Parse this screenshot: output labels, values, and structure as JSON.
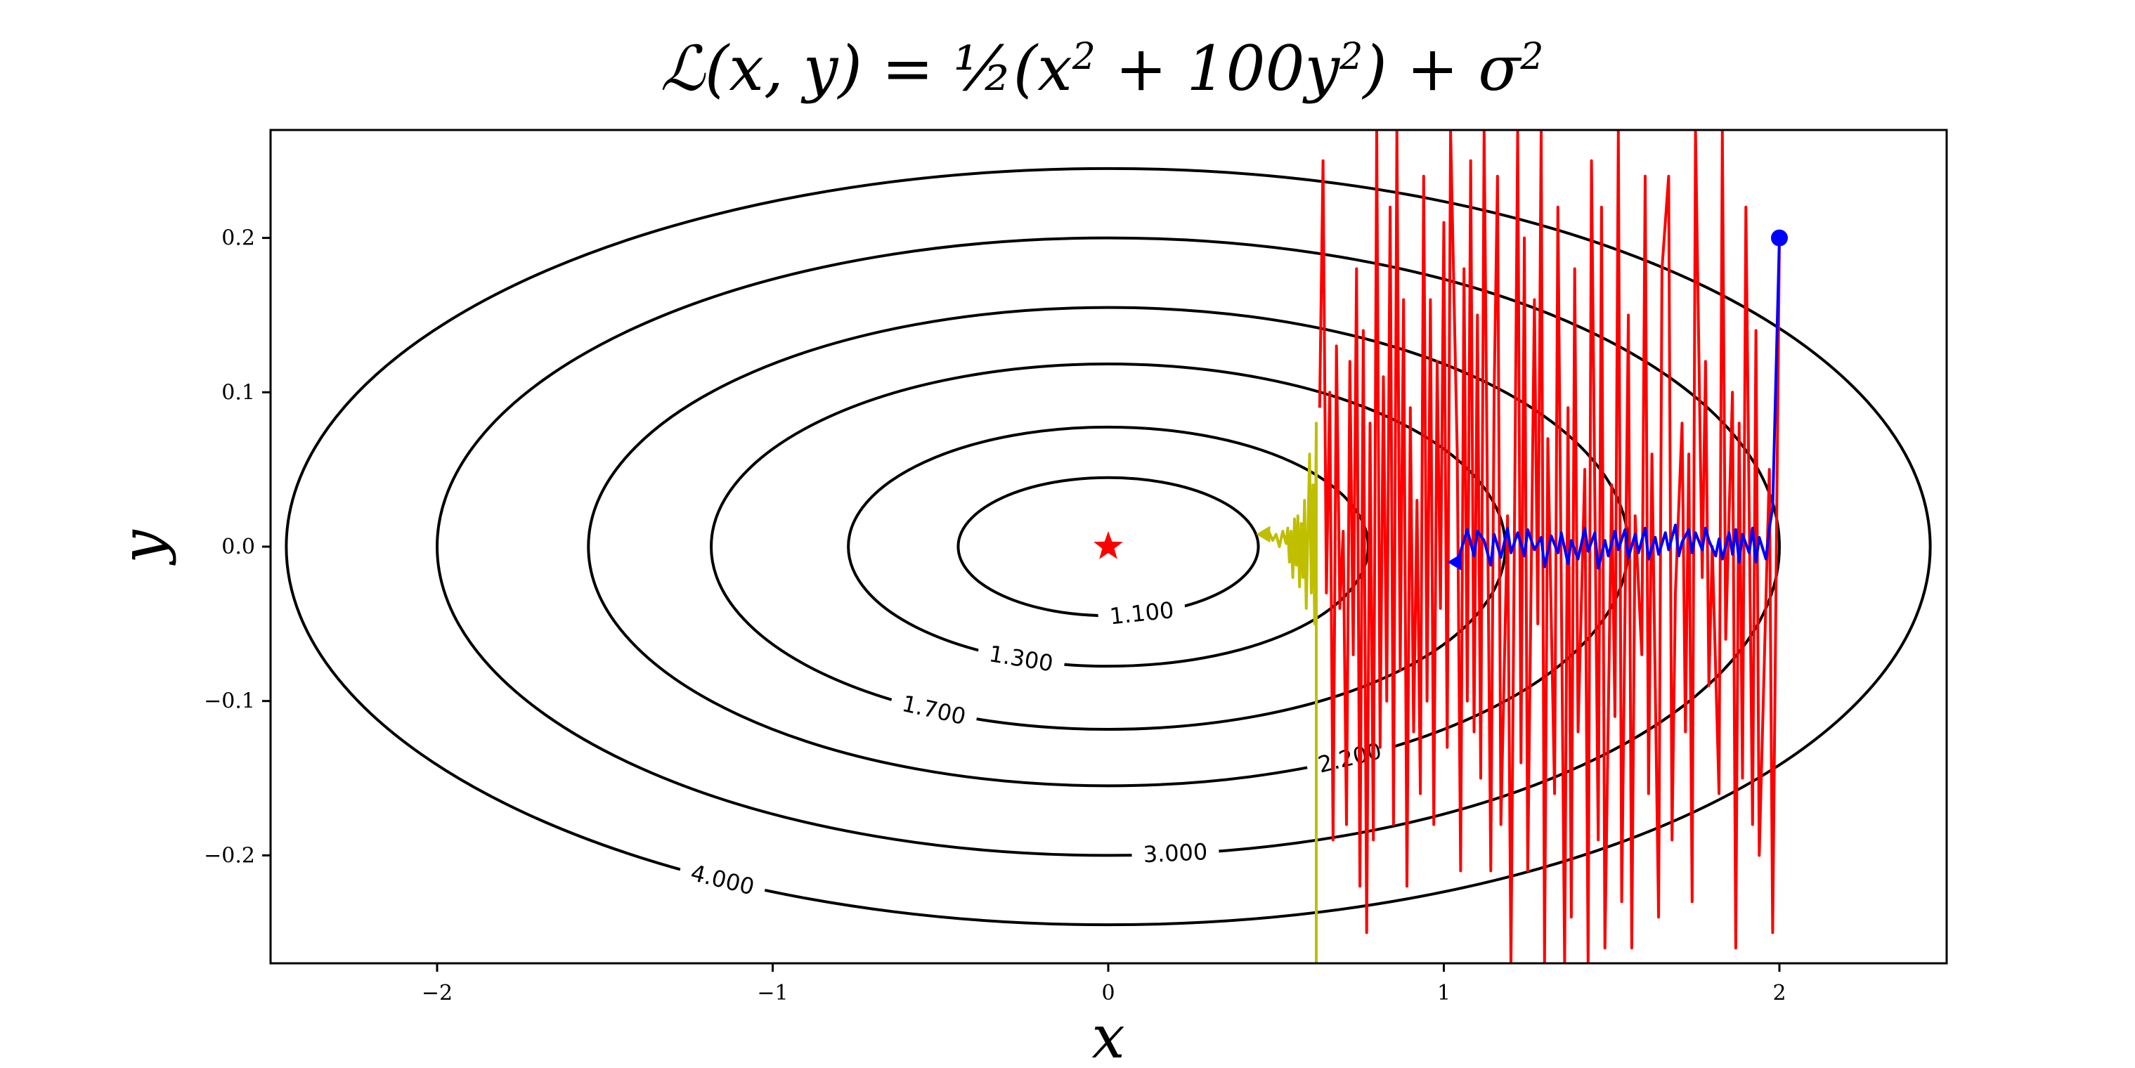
{
  "chart_data": {
    "type": "line",
    "title": {
      "parts": [
        {
          "t": "ℒ(x, y) = ",
          "sup": false
        },
        {
          "t": "½",
          "sup": false
        },
        {
          "t": "(x",
          "sup": false
        },
        {
          "t": "2",
          "sup": true
        },
        {
          "t": " + 100y",
          "sup": false
        },
        {
          "t": "2",
          "sup": true
        },
        {
          "t": ") + σ",
          "sup": false
        },
        {
          "t": "2",
          "sup": true
        }
      ]
    },
    "xlabel": "x",
    "ylabel": "y",
    "xlim": [
      -2.5,
      2.5
    ],
    "ylim": [
      -0.27,
      0.27
    ],
    "xticks": [
      {
        "v": -2,
        "label": "−2"
      },
      {
        "v": -1,
        "label": "−1"
      },
      {
        "v": 0,
        "label": "0"
      },
      {
        "v": 1,
        "label": "1"
      },
      {
        "v": 2,
        "label": "2"
      }
    ],
    "yticks": [
      {
        "v": -0.2,
        "label": "−0.2"
      },
      {
        "v": -0.1,
        "label": "−0.1"
      },
      {
        "v": 0.0,
        "label": "0.0"
      },
      {
        "v": 0.1,
        "label": "0.1"
      },
      {
        "v": 0.2,
        "label": "0.2"
      }
    ],
    "grid": false,
    "contours": {
      "sigma2": 1.0,
      "levels": [
        {
          "level": 1.1,
          "label": "1.100",
          "label_x": 0.1
        },
        {
          "level": 1.3,
          "label": "1.300",
          "label_x": -0.26
        },
        {
          "level": 1.7,
          "label": "1.700",
          "label_x": -0.52
        },
        {
          "level": 2.2,
          "label": "2.200",
          "label_x": 0.72
        },
        {
          "level": 3.0,
          "label": "3.000",
          "label_x": 0.2
        },
        {
          "level": 4.0,
          "label": "4.000",
          "label_x": -1.15
        }
      ],
      "color": "#000000"
    },
    "optimum": {
      "x": 0.0,
      "y": 0.0,
      "marker": "star",
      "color": "#ff0000"
    },
    "series": [
      {
        "color": "#ff0000",
        "start": [
          2.0,
          0.2
        ],
        "x": [
          2.0,
          1.98,
          1.97,
          1.94,
          1.93,
          1.92,
          1.9,
          1.89,
          1.88,
          1.87,
          1.86,
          1.84,
          1.83,
          1.82,
          1.8,
          1.79,
          1.78,
          1.77,
          1.75,
          1.74,
          1.73,
          1.72,
          1.71,
          1.69,
          1.68,
          1.67,
          1.65,
          1.64,
          1.62,
          1.61,
          1.6,
          1.59,
          1.57,
          1.56,
          1.55,
          1.53,
          1.52,
          1.51,
          1.5,
          1.48,
          1.47,
          1.46,
          1.44,
          1.43,
          1.42,
          1.4,
          1.39,
          1.38,
          1.37,
          1.36,
          1.34,
          1.33,
          1.31,
          1.3,
          1.29,
          1.28,
          1.27,
          1.25,
          1.24,
          1.23,
          1.22,
          1.2,
          1.19,
          1.17,
          1.16,
          1.15,
          1.14,
          1.12,
          1.11,
          1.1,
          1.09,
          1.08,
          1.07,
          1.06,
          1.05,
          1.04,
          1.02,
          1.01,
          1.0,
          0.99,
          0.98,
          0.97,
          0.96,
          0.95,
          0.94,
          0.93,
          0.92,
          0.91,
          0.9,
          0.89,
          0.88,
          0.87,
          0.86,
          0.85,
          0.84,
          0.83,
          0.82,
          0.81,
          0.8,
          0.79,
          0.78,
          0.77,
          0.76,
          0.75,
          0.74,
          0.73,
          0.72,
          0.71,
          0.7,
          0.69,
          0.68,
          0.67,
          0.66,
          0.65,
          0.64,
          0.63
        ],
        "y": [
          0.2,
          -0.25,
          0.05,
          -0.2,
          0.14,
          -0.18,
          0.22,
          -0.15,
          0.08,
          -0.26,
          0.1,
          -0.06,
          0.27,
          -0.16,
          0.0,
          -0.09,
          0.12,
          -0.02,
          0.27,
          -0.23,
          0.06,
          -0.12,
          0.08,
          -0.03,
          -0.19,
          0.24,
          0.18,
          -0.24,
          0.06,
          -0.16,
          0.24,
          -0.07,
          0.02,
          -0.26,
          0.15,
          -0.23,
          0.27,
          -0.11,
          0.04,
          -0.26,
          0.22,
          -0.19,
          0.25,
          -0.27,
          0.05,
          -0.12,
          0.18,
          -0.24,
          0.09,
          -0.27,
          0.22,
          -0.16,
          0.07,
          -0.27,
          0.27,
          -0.05,
          0.16,
          -0.21,
          0.2,
          -0.14,
          0.27,
          -0.27,
          0.02,
          -0.18,
          0.24,
          0.1,
          -0.21,
          0.27,
          -0.15,
          0.15,
          -0.12,
          0.25,
          -0.1,
          0.18,
          -0.21,
          0.06,
          0.27,
          -0.13,
          0.21,
          -0.04,
          0.12,
          -0.18,
          0.16,
          -0.1,
          0.24,
          -0.16,
          0.03,
          -0.12,
          0.09,
          -0.22,
          0.16,
          -0.08,
          0.27,
          -0.18,
          0.22,
          -0.1,
          0.11,
          -0.13,
          0.27,
          -0.19,
          0.08,
          -0.25,
          0.14,
          -0.22,
          0.18,
          -0.07,
          0.12,
          -0.18,
          0.01,
          -0.04,
          0.13,
          -0.19,
          0.1,
          -0.03,
          0.25,
          0.09
        ]
      },
      {
        "color": "#0000ff",
        "start": [
          2.0,
          0.2
        ],
        "x": [
          2.0,
          1.98,
          1.97,
          1.96,
          1.94,
          1.93,
          1.92,
          1.91,
          1.89,
          1.88,
          1.87,
          1.86,
          1.85,
          1.83,
          1.82,
          1.81,
          1.79,
          1.78,
          1.77,
          1.75,
          1.74,
          1.73,
          1.71,
          1.7,
          1.69,
          1.67,
          1.66,
          1.64,
          1.63,
          1.61,
          1.6,
          1.58,
          1.57,
          1.55,
          1.54,
          1.52,
          1.51,
          1.49,
          1.48,
          1.46,
          1.45,
          1.43,
          1.42,
          1.4,
          1.38,
          1.37,
          1.35,
          1.34,
          1.32,
          1.3,
          1.29,
          1.27,
          1.25,
          1.24,
          1.22,
          1.2,
          1.19,
          1.17,
          1.15,
          1.14,
          1.12,
          1.1,
          1.09,
          1.07,
          1.05,
          1.04
        ],
        "y": [
          0.2,
          0.025,
          0.012,
          -0.008,
          0.006,
          -0.01,
          0.012,
          -0.004,
          0.008,
          -0.01,
          0.011,
          -0.005,
          0.009,
          -0.008,
          0.005,
          -0.006,
          0.004,
          0.012,
          -0.002,
          0.009,
          -0.004,
          0.011,
          0.003,
          -0.006,
          0.014,
          -0.002,
          0.009,
          -0.005,
          0.006,
          -0.008,
          0.012,
          -0.004,
          0.008,
          -0.007,
          0.011,
          -0.002,
          0.01,
          -0.006,
          0.004,
          -0.014,
          0.009,
          -0.003,
          0.012,
          -0.008,
          0.004,
          -0.011,
          0.009,
          -0.004,
          0.007,
          -0.013,
          0.006,
          -0.002,
          0.011,
          -0.006,
          0.009,
          -0.004,
          0.012,
          -0.007,
          0.008,
          -0.012,
          0.004,
          0.01,
          -0.006,
          0.011,
          -0.003,
          -0.01
        ],
        "end_marker": "triangle-left"
      },
      {
        "color": "#bfbf00",
        "x": [
          0.62,
          0.62,
          0.615,
          0.61,
          0.605,
          0.6,
          0.595,
          0.59,
          0.585,
          0.58,
          0.575,
          0.57,
          0.565,
          0.56,
          0.555,
          0.55,
          0.545,
          0.54,
          0.535,
          0.53,
          0.52,
          0.51,
          0.5,
          0.49,
          0.48,
          0.47
        ],
        "y": [
          -0.27,
          0.08,
          -0.05,
          0.04,
          -0.03,
          0.06,
          0.01,
          -0.04,
          0.03,
          -0.02,
          0.015,
          -0.026,
          0.02,
          -0.012,
          0.018,
          -0.02,
          0.01,
          -0.01,
          0.012,
          0.002,
          0.01,
          0.0,
          0.008,
          0.004,
          0.009,
          0.008
        ],
        "end_marker": "triangle-left"
      }
    ]
  }
}
